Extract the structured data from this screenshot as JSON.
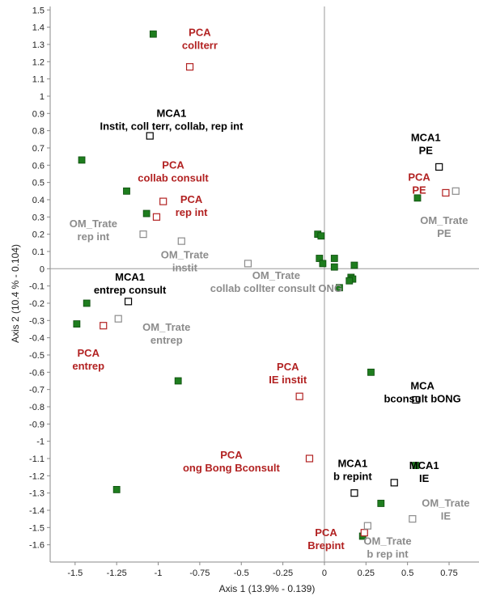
{
  "chart_data": {
    "type": "scatter",
    "title": "",
    "xlabel": "Axis 1 (13.9% - 0.139)",
    "ylabel": "Axis 2 (10.4 % - 0.104)",
    "xlim": [
      -1.65,
      0.93
    ],
    "ylim": [
      -1.7,
      1.52
    ],
    "xticks": [
      -1.5,
      -1.25,
      -1,
      -0.75,
      -0.5,
      -0.25,
      0,
      0.25,
      0.5,
      0.75
    ],
    "xtick_labels": [
      "-1.5",
      "-1.25",
      "-1",
      "-0.75",
      "-0.5",
      "-0.25",
      "0",
      "0.25",
      "0.5",
      "0.75"
    ],
    "yticks": [
      1.5,
      1.4,
      1.3,
      1.2,
      1.1,
      1,
      0.9,
      0.8,
      0.7,
      0.6,
      0.5,
      0.4,
      0.3,
      0.2,
      0.1,
      0,
      -0.1,
      -0.2,
      -0.3,
      -0.4,
      -0.5,
      -0.6,
      -0.7,
      -0.8,
      -0.9,
      -1,
      -1.1,
      -1.2,
      -1.3,
      -1.4,
      -1.5,
      -1.6
    ],
    "ytick_labels": [
      "1.5",
      "1.4",
      "1.3",
      "1.2",
      "1.1",
      "1",
      "0.9",
      "0.8",
      "0.7",
      "0.6",
      "0.5",
      "0.4",
      "0.3",
      "0.2",
      "0.1",
      "0",
      "-0.1",
      "-0.2",
      "-0.3",
      "-0.4",
      "-0.5",
      "-0.6",
      "-0.7",
      "-0.8",
      "-0.9",
      "-1",
      "-1.1",
      "-1.2",
      "-1.3",
      "-1.4",
      "-1.5",
      "-1.6"
    ],
    "colors": {
      "green": "#1e7d1e",
      "green_border": "#0d4d0d",
      "pca": "#b22222",
      "mca": "#000000",
      "om": "#8c8c8c",
      "axis": "#999999",
      "frame": "#888888"
    },
    "series": [
      {
        "kind": "filled",
        "color": "#1e7d1e",
        "points": [
          {
            "x": -1.03,
            "y": 1.36
          },
          {
            "x": -1.46,
            "y": 0.63
          },
          {
            "x": -1.19,
            "y": 0.45
          },
          {
            "x": -1.07,
            "y": 0.32
          },
          {
            "x": -0.04,
            "y": 0.2
          },
          {
            "x": -0.02,
            "y": 0.19
          },
          {
            "x": -0.03,
            "y": 0.06
          },
          {
            "x": -0.01,
            "y": 0.03
          },
          {
            "x": 0.06,
            "y": 0.06
          },
          {
            "x": 0.06,
            "y": 0.01
          },
          {
            "x": 0.18,
            "y": 0.02
          },
          {
            "x": 0.16,
            "y": -0.05
          },
          {
            "x": 0.17,
            "y": -0.06
          },
          {
            "x": 0.15,
            "y": -0.07
          },
          {
            "x": 0.09,
            "y": -0.11
          },
          {
            "x": -1.43,
            "y": -0.2
          },
          {
            "x": -1.49,
            "y": -0.32
          },
          {
            "x": -0.88,
            "y": -0.65
          },
          {
            "x": 0.28,
            "y": -0.6
          },
          {
            "x": 0.56,
            "y": 0.41
          },
          {
            "x": 0.55,
            "y": -1.14
          },
          {
            "x": 0.34,
            "y": -1.36
          },
          {
            "x": 0.23,
            "y": -1.55
          },
          {
            "x": -1.25,
            "y": -1.28
          }
        ]
      },
      {
        "kind": "hollow",
        "color": "#b22222",
        "points": [
          {
            "x": -0.81,
            "y": 1.17
          },
          {
            "x": -0.97,
            "y": 0.39
          },
          {
            "x": -1.01,
            "y": 0.3
          },
          {
            "x": 0.73,
            "y": 0.44
          },
          {
            "x": -1.33,
            "y": -0.33
          },
          {
            "x": -0.15,
            "y": -0.74
          },
          {
            "x": -0.09,
            "y": -1.1
          },
          {
            "x": 0.24,
            "y": -1.53
          }
        ]
      },
      {
        "kind": "hollow",
        "color": "#000000",
        "points": [
          {
            "x": -1.05,
            "y": 0.77
          },
          {
            "x": 0.69,
            "y": 0.59
          },
          {
            "x": -1.18,
            "y": -0.19
          },
          {
            "x": 0.55,
            "y": -0.76
          },
          {
            "x": 0.18,
            "y": -1.3
          },
          {
            "x": 0.42,
            "y": -1.24
          }
        ]
      },
      {
        "kind": "hollow",
        "color": "#8c8c8c",
        "points": [
          {
            "x": -1.09,
            "y": 0.2
          },
          {
            "x": -0.86,
            "y": 0.16
          },
          {
            "x": -0.46,
            "y": 0.03
          },
          {
            "x": 0.79,
            "y": 0.45
          },
          {
            "x": -1.24,
            "y": -0.29
          },
          {
            "x": 0.26,
            "y": -1.49
          },
          {
            "x": 0.53,
            "y": -1.45
          }
        ]
      }
    ],
    "annotations": [
      {
        "lines": [
          "PCA",
          "collterr"
        ],
        "x": -0.75,
        "y": 1.35,
        "color": "#b22222"
      },
      {
        "lines": [
          "MCA1",
          "Instit, coll terr, collab, rep int"
        ],
        "x": -0.92,
        "y": 0.88,
        "color": "#000000"
      },
      {
        "lines": [
          "MCA1",
          "PE"
        ],
        "x": 0.61,
        "y": 0.74,
        "color": "#000000"
      },
      {
        "lines": [
          "PCA",
          "collab consult"
        ],
        "x": -0.91,
        "y": 0.58,
        "color": "#b22222"
      },
      {
        "lines": [
          "PCA",
          "rep int"
        ],
        "x": -0.8,
        "y": 0.38,
        "color": "#b22222"
      },
      {
        "lines": [
          "PCA",
          "PE"
        ],
        "x": 0.57,
        "y": 0.51,
        "color": "#b22222"
      },
      {
        "lines": [
          "OM_Trate",
          "rep int"
        ],
        "x": -1.39,
        "y": 0.24,
        "color": "#8c8c8c"
      },
      {
        "lines": [
          "OM_Trate",
          "PE"
        ],
        "x": 0.72,
        "y": 0.26,
        "color": "#8c8c8c"
      },
      {
        "lines": [
          "OM_Trate",
          "instit"
        ],
        "x": -0.84,
        "y": 0.06,
        "color": "#8c8c8c"
      },
      {
        "lines": [
          "OM_Trate",
          "collab collter consult ONG"
        ],
        "x": -0.29,
        "y": -0.06,
        "color": "#8c8c8c"
      },
      {
        "lines": [
          "MCA1",
          "entrep consult"
        ],
        "x": -1.17,
        "y": -0.07,
        "color": "#000000"
      },
      {
        "lines": [
          "OM_Trate",
          "entrep"
        ],
        "x": -0.95,
        "y": -0.36,
        "color": "#8c8c8c"
      },
      {
        "lines": [
          "PCA",
          "entrep"
        ],
        "x": -1.42,
        "y": -0.51,
        "color": "#b22222"
      },
      {
        "lines": [
          "PCA",
          "IE instit"
        ],
        "x": -0.22,
        "y": -0.59,
        "color": "#b22222"
      },
      {
        "lines": [
          "MCA",
          "bconsult bONG"
        ],
        "x": 0.59,
        "y": -0.7,
        "color": "#000000"
      },
      {
        "lines": [
          "PCA",
          "ong Bong Bconsult"
        ],
        "x": -0.56,
        "y": -1.1,
        "color": "#b22222"
      },
      {
        "lines": [
          "MCA1",
          "b repint"
        ],
        "x": 0.17,
        "y": -1.15,
        "color": "#000000"
      },
      {
        "lines": [
          "MCA1",
          "IE"
        ],
        "x": 0.6,
        "y": -1.16,
        "color": "#000000"
      },
      {
        "lines": [
          "OM_Trate",
          "IE"
        ],
        "x": 0.73,
        "y": -1.38,
        "color": "#8c8c8c"
      },
      {
        "lines": [
          "PCA",
          "Brepint"
        ],
        "x": 0.01,
        "y": -1.55,
        "color": "#b22222"
      },
      {
        "lines": [
          "OM_Trate",
          "b rep int"
        ],
        "x": 0.38,
        "y": -1.6,
        "color": "#8c8c8c"
      }
    ]
  }
}
